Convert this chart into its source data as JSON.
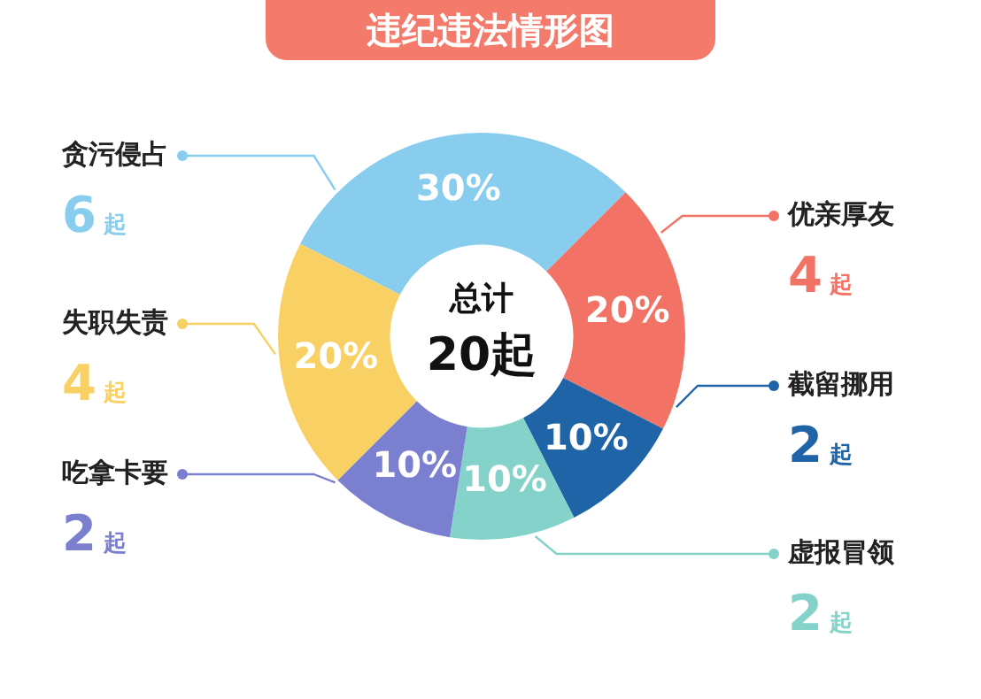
{
  "chart_data": {
    "type": "donut",
    "title": "违纪违法情形图",
    "categories": [
      "贪污侵占",
      "优亲厚友",
      "截留挪用",
      "虚报冒领",
      "吃拿卡要",
      "失职失责"
    ],
    "values": [
      30,
      20,
      10,
      10,
      10,
      20
    ],
    "value_labels": [
      "30%",
      "20%",
      "10%",
      "10%",
      "10%",
      "20%"
    ],
    "colors": [
      "#88cdee",
      "#f27366",
      "#1f64a6",
      "#84d2c9",
      "#7b7fd0",
      "#f9d064"
    ],
    "annotations": [
      "总计",
      "20起",
      "6起",
      "4起",
      "2起",
      "2起",
      "2起",
      "4起"
    ],
    "legend": "right"
  }
}
